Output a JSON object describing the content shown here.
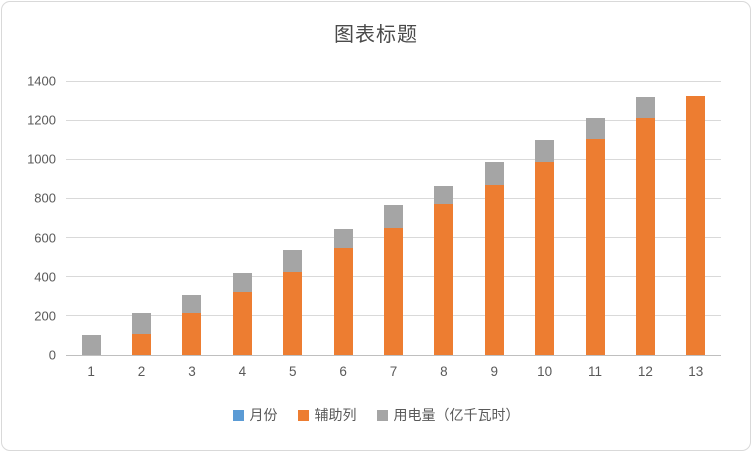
{
  "frame": {
    "background": "#FFFFFF",
    "border_color": "#D9D9D9"
  },
  "chart_data": {
    "type": "bar",
    "stacked": true,
    "title": "图表标题",
    "categories": [
      "1",
      "2",
      "3",
      "4",
      "5",
      "6",
      "7",
      "8",
      "9",
      "10",
      "11",
      "12",
      "13"
    ],
    "series": [
      {
        "name": "月份",
        "color": "#5B9BD5",
        "values": [
          0,
          0,
          0,
          0,
          0,
          0,
          0,
          0,
          0,
          0,
          0,
          0,
          0
        ]
      },
      {
        "name": "辅助列",
        "color": "#ED7D31",
        "values": [
          0,
          105,
          215,
          320,
          425,
          545,
          650,
          770,
          870,
          985,
          1105,
          1210,
          1325
        ]
      },
      {
        "name": "用电量（亿千瓦时）",
        "color": "#A5A5A5",
        "values": [
          100,
          110,
          90,
          100,
          110,
          100,
          115,
          95,
          115,
          115,
          105,
          110,
          0
        ]
      }
    ],
    "xlabel": "",
    "ylabel": "",
    "ylim": [
      0,
      1400
    ],
    "yticks": [
      0,
      200,
      400,
      600,
      800,
      1000,
      1200,
      1400
    ],
    "grid": true,
    "legend_position": "bottom",
    "styles": {
      "axis_text_color": "#595959",
      "title_color": "#4A4A4A",
      "gridline_color": "#D9D9D9",
      "axisline_color": "#BFBFBF"
    }
  }
}
